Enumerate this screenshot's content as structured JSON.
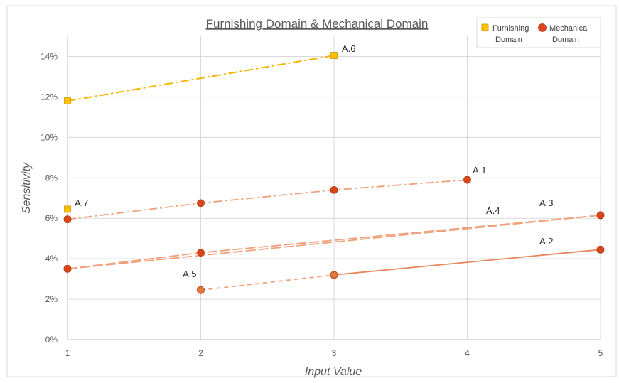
{
  "chart_data": {
    "type": "line",
    "title": "Furnishing Domain & Mechanical Domain",
    "xlabel": "Input Value",
    "ylabel": "Sensitivity",
    "x_ticks": [
      "1",
      "2",
      "3",
      "4",
      "5"
    ],
    "y_ticks": [
      "0%",
      "2%",
      "4%",
      "6%",
      "8%",
      "10%",
      "12%",
      "14%"
    ],
    "xlim": [
      1,
      5
    ],
    "ylim": [
      0,
      15
    ],
    "grid": true,
    "legend_position": "top-right",
    "legend": [
      {
        "label_line1": "Furnishing",
        "label_line2": "Domain",
        "marker": "square",
        "color": "#FFC000"
      },
      {
        "label_line1": "Mechanical",
        "label_line2": "Domain",
        "marker": "circle",
        "color": "#D9461C"
      }
    ],
    "series": [
      {
        "label": "A.6",
        "domain": "Furnishing",
        "marker": "square",
        "color": "#FFC000",
        "line_color": "#F5B400",
        "dash": "dashdot",
        "x": [
          1,
          3
        ],
        "y": [
          11.8,
          14.05
        ]
      },
      {
        "label": "A.7",
        "domain": "Furnishing",
        "marker": "square",
        "color": "#FFC000",
        "line_color": "#F5B400",
        "dash": "none",
        "x": [
          1
        ],
        "y": [
          6.45
        ]
      },
      {
        "label": "A.1",
        "domain": "Mechanical",
        "marker": "circle",
        "color": "#D9461C",
        "line_color": "#F0A07A",
        "dash": "dashdot",
        "x": [
          1,
          2,
          3,
          4
        ],
        "y": [
          5.95,
          6.75,
          7.4,
          7.9
        ]
      },
      {
        "label": "A.3",
        "domain": "Mechanical",
        "marker": "circle",
        "color": "#D9461C",
        "line_color": "#F0A07A",
        "dash": "longdash",
        "x": [
          1,
          2,
          5
        ],
        "y": [
          3.5,
          4.3,
          6.15
        ]
      },
      {
        "label": "A.4",
        "domain": "Mechanical",
        "marker": "circle",
        "color": "#D9461C",
        "line_color": "#F0A07A",
        "dash": "longdash",
        "x": [
          1,
          5
        ],
        "y": [
          3.5,
          6.15
        ]
      },
      {
        "label": "A.2",
        "domain": "Mechanical",
        "marker": "circle",
        "color": "#D9461C",
        "line_color": "#E8855A",
        "dash": "solid",
        "x": [
          3,
          5
        ],
        "y": [
          3.2,
          4.45
        ]
      },
      {
        "label": "A.5",
        "domain": "Mechanical",
        "marker": "circle",
        "color": "#E07A3A",
        "line_color": "#F0A07A",
        "dash": "dashed",
        "x": [
          2,
          3
        ],
        "y": [
          2.45,
          3.2
        ]
      }
    ]
  }
}
